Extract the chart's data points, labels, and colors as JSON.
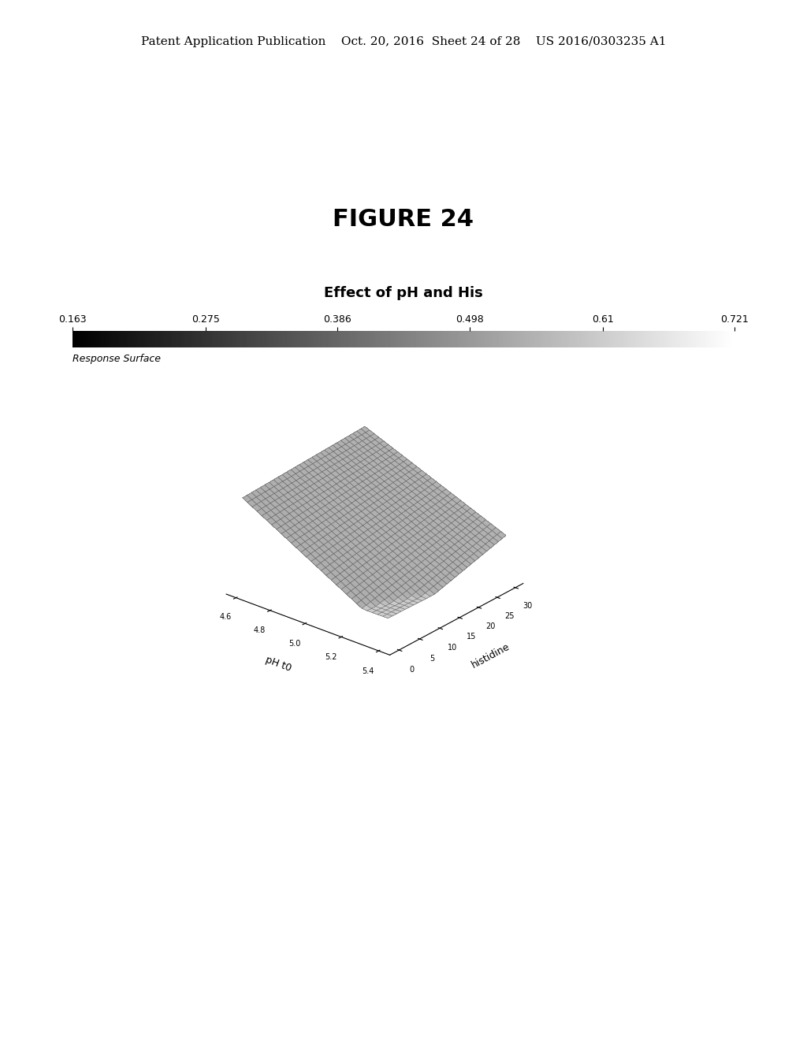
{
  "figure_title": "FIGURE 24",
  "chart_title": "Effect of pH and His",
  "colorbar_values": [
    0.163,
    0.275,
    0.386,
    0.498,
    0.61,
    0.721
  ],
  "colorbar_label": "Response Surface",
  "xlabel": "pH t0",
  "ylabel": "histidine",
  "ph_range": [
    4.6,
    5.4
  ],
  "his_range": [
    0,
    30
  ],
  "ph_ticks": [
    4.6,
    4.8,
    5.0,
    5.2,
    5.4
  ],
  "his_ticks": [
    0,
    5,
    10,
    15,
    20,
    25,
    30
  ],
  "background_color": "#ffffff",
  "wire_color": "#555555",
  "header_text": "Patent Application Publication    Oct. 20, 2016  Sheet 24 of 28    US 2016/0303235 A1",
  "header_fontsize": 11,
  "figure_title_fontsize": 22,
  "chart_title_fontsize": 13
}
